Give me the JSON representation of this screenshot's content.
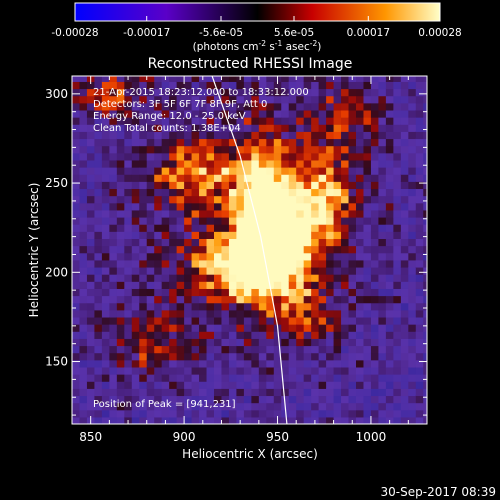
{
  "chart_data": {
    "type": "heatmap",
    "title": "Reconstructed RHESSI Image",
    "xlabel": "Heliocentric X (arcsec)",
    "ylabel": "Heliocentric Y (arcsec)",
    "xlim": [
      840,
      1030
    ],
    "ylim": [
      115,
      310
    ],
    "x_ticks": [
      850,
      900,
      950,
      1000
    ],
    "y_ticks": [
      150,
      200,
      250,
      300
    ],
    "colorbar": {
      "ticks": [
        "-0.00028",
        "-0.00017",
        "-5.6e-05",
        "5.6e-05",
        "0.00017",
        "0.00028"
      ],
      "unit": "(photons cm",
      "unit_sup1": "-2",
      "unit_mid": " s",
      "unit_sup2": "-1",
      "unit_mid2": " asec",
      "unit_sup3": "-2",
      "unit_end": ")",
      "range": [
        -0.00028,
        0.00028
      ]
    },
    "info_lines": [
      "21-Apr-2015 18:23:12.000 to 18:33:12.000",
      "Detectors: 3F 5F 6F 7F 8F 9F, Att 0",
      "Energy Range: 12.0 - 25.0 keV",
      "Clean    Total counts: 1.38E+04"
    ],
    "peak_label": "Position of Peak = [941,231]",
    "peak": [
      941,
      231
    ],
    "limb_points": [
      [
        915,
        310
      ],
      [
        930,
        265
      ],
      [
        941,
        220
      ],
      [
        950,
        170
      ],
      [
        955,
        115
      ]
    ],
    "hotspots": [
      {
        "x": 943,
        "y": 235,
        "amp": 1.0,
        "sx": 10,
        "sy": 22
      },
      {
        "x": 955,
        "y": 215,
        "amp": 0.75,
        "sx": 14,
        "sy": 18
      },
      {
        "x": 935,
        "y": 200,
        "amp": 0.55,
        "sx": 12,
        "sy": 14
      },
      {
        "x": 905,
        "y": 255,
        "amp": 0.5,
        "sx": 18,
        "sy": 12
      },
      {
        "x": 975,
        "y": 245,
        "amp": 0.6,
        "sx": 12,
        "sy": 18
      },
      {
        "x": 860,
        "y": 300,
        "amp": 0.6,
        "sx": 14,
        "sy": 8
      },
      {
        "x": 920,
        "y": 205,
        "amp": 0.5,
        "sx": 14,
        "sy": 10
      },
      {
        "x": 990,
        "y": 290,
        "amp": 0.4,
        "sx": 12,
        "sy": 12
      },
      {
        "x": 880,
        "y": 160,
        "amp": 0.35,
        "sx": 16,
        "sy": 14
      },
      {
        "x": 965,
        "y": 175,
        "amp": 0.45,
        "sx": 10,
        "sy": 12
      }
    ]
  },
  "footer_date": "30-Sep-2017 08:39"
}
